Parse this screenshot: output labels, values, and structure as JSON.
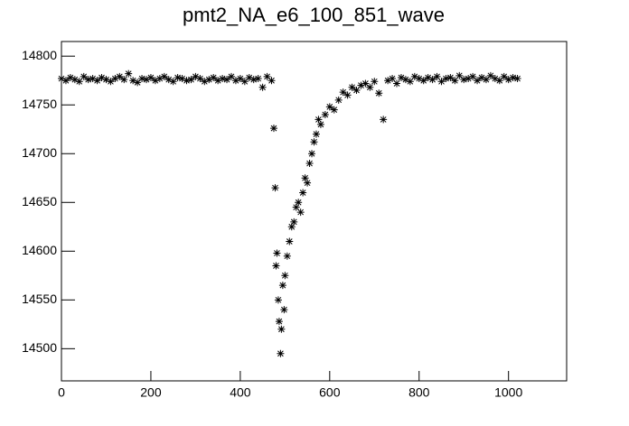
{
  "chart_data": {
    "type": "scatter",
    "title": "pmt2_NA_e6_100_851_wave",
    "x": [
      0,
      10,
      20,
      30,
      40,
      50,
      60,
      70,
      80,
      90,
      100,
      110,
      120,
      130,
      140,
      150,
      160,
      170,
      180,
      190,
      200,
      210,
      220,
      230,
      240,
      250,
      260,
      270,
      280,
      290,
      300,
      310,
      320,
      330,
      340,
      350,
      360,
      370,
      380,
      390,
      400,
      410,
      420,
      430,
      440,
      450,
      460,
      470,
      475,
      478,
      480,
      482,
      485,
      487,
      490,
      492,
      495,
      498,
      500,
      505,
      510,
      515,
      520,
      525,
      530,
      535,
      540,
      545,
      550,
      555,
      560,
      565,
      570,
      575,
      580,
      590,
      600,
      610,
      620,
      630,
      640,
      650,
      660,
      670,
      680,
      690,
      700,
      710,
      720,
      730,
      740,
      750,
      760,
      770,
      780,
      790,
      800,
      810,
      820,
      830,
      840,
      850,
      860,
      870,
      880,
      890,
      900,
      910,
      920,
      930,
      940,
      950,
      960,
      970,
      980,
      990,
      1000,
      1010,
      1020
    ],
    "values": [
      14777,
      14775,
      14778,
      14776,
      14774,
      14779,
      14776,
      14777,
      14775,
      14778,
      14776,
      14774,
      14777,
      14779,
      14776,
      14782,
      14775,
      14773,
      14777,
      14776,
      14778,
      14775,
      14777,
      14779,
      14776,
      14774,
      14778,
      14777,
      14775,
      14776,
      14779,
      14777,
      14774,
      14776,
      14778,
      14775,
      14777,
      14776,
      14779,
      14775,
      14777,
      14774,
      14778,
      14776,
      14777,
      14768,
      14779,
      14775,
      14726,
      14665,
      14585,
      14598,
      14550,
      14528,
      14495,
      14520,
      14565,
      14540,
      14575,
      14595,
      14610,
      14625,
      14630,
      14645,
      14650,
      14640,
      14660,
      14675,
      14670,
      14690,
      14700,
      14712,
      14720,
      14735,
      14730,
      14740,
      14748,
      14745,
      14755,
      14763,
      14760,
      14768,
      14765,
      14770,
      14772,
      14768,
      14774,
      14762,
      14735,
      14775,
      14777,
      14772,
      14778,
      14776,
      14774,
      14779,
      14777,
      14775,
      14778,
      14776,
      14779,
      14774,
      14777,
      14778,
      14775,
      14780,
      14776,
      14777,
      14779,
      14775,
      14778,
      14776,
      14780,
      14777,
      14775,
      14779,
      14776,
      14778,
      14777
    ],
    "color": "#000000",
    "xlim": [
      0,
      1130
    ],
    "xticks": [
      0,
      200,
      400,
      600,
      800,
      1000
    ],
    "ylim": [
      14467,
      14815
    ],
    "yticks": [
      14500,
      14550,
      14600,
      14650,
      14700,
      14750,
      14800
    ]
  }
}
